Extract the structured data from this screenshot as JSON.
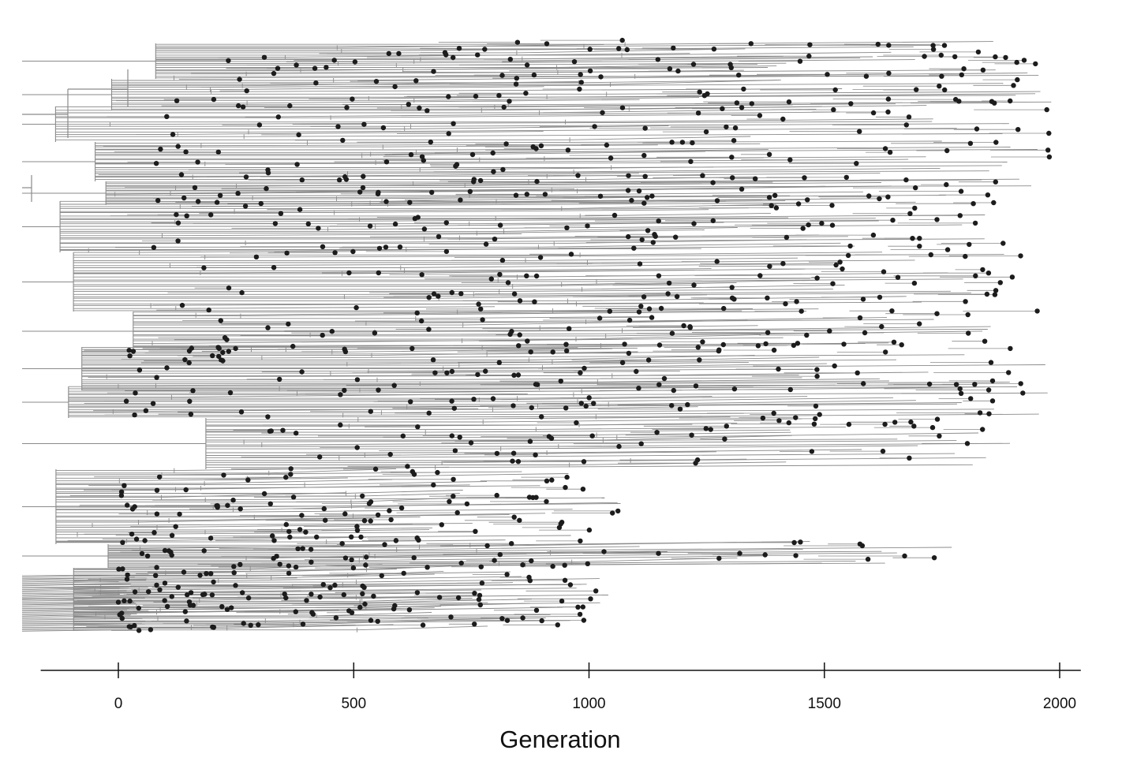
{
  "chart_data": {
    "type": "phylogenetic tree",
    "xlabel": "Generation",
    "xticks": [
      0,
      500,
      1000,
      1500,
      2000
    ],
    "xlim": [
      -165,
      2045
    ],
    "grid": false,
    "legend": "none",
    "colors": {
      "branch": "#8a8a8a",
      "tip": "#1c1c1c",
      "axis": "#111111"
    },
    "tip_groups": [
      {
        "y0": 55,
        "y1": 100,
        "gen_min": 150,
        "gen_max": 1960,
        "count": 60
      },
      {
        "y0": 100,
        "y1": 140,
        "gen_min": 80,
        "gen_max": 1990,
        "count": 45
      },
      {
        "y0": 135,
        "y1": 180,
        "gen_min": 30,
        "gen_max": 1990,
        "count": 40
      },
      {
        "y0": 180,
        "y1": 230,
        "gen_min": 80,
        "gen_max": 1980,
        "count": 55
      },
      {
        "y0": 230,
        "y1": 260,
        "gen_min": 60,
        "gen_max": 1990,
        "count": 45
      },
      {
        "y0": 255,
        "y1": 320,
        "gen_min": 10,
        "gen_max": 1890,
        "count": 70
      },
      {
        "y0": 320,
        "y1": 395,
        "gen_min": 60,
        "gen_max": 1930,
        "count": 75
      },
      {
        "y0": 395,
        "y1": 445,
        "gen_min": 110,
        "gen_max": 1960,
        "count": 55
      },
      {
        "y0": 440,
        "y1": 495,
        "gen_min": 0,
        "gen_max": 1990,
        "count": 65
      },
      {
        "y0": 490,
        "y1": 530,
        "gen_min": 10,
        "gen_max": 2000,
        "count": 50
      },
      {
        "y0": 530,
        "y1": 595,
        "gen_min": 320,
        "gen_max": 1900,
        "count": 60
      },
      {
        "y0": 595,
        "y1": 690,
        "gen_min": 0,
        "gen_max": 1070,
        "count": 90
      },
      {
        "y0": 690,
        "y1": 720,
        "gen_min": 50,
        "gen_max": 1790,
        "count": 45
      },
      {
        "y0": 720,
        "y1": 800,
        "gen_min": 0,
        "gen_max": 1050,
        "count": 120
      }
    ]
  }
}
